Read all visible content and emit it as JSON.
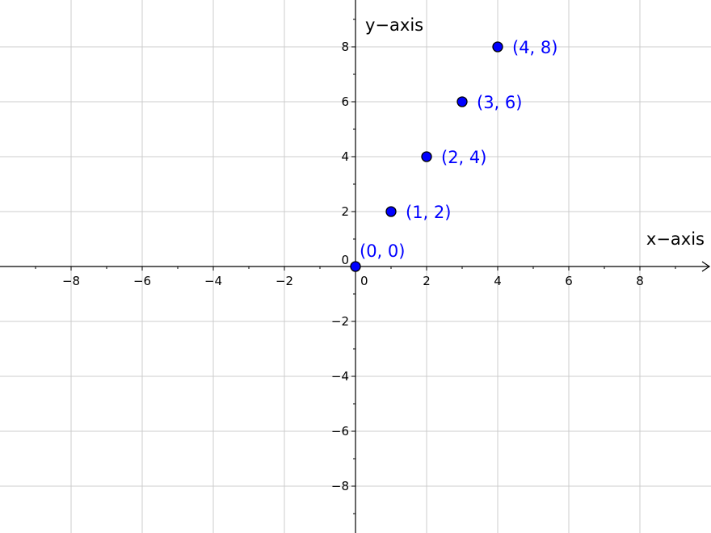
{
  "chart_data": {
    "type": "scatter",
    "xlabel": "x−axis",
    "ylabel": "y−axis",
    "xlim": [
      -10,
      10
    ],
    "ylim": [
      -9.7,
      9.7
    ],
    "grid": true,
    "x_ticks": [
      -8,
      -6,
      -4,
      -2,
      0,
      2,
      4,
      6,
      8
    ],
    "y_ticks": [
      -8,
      -6,
      -4,
      -2,
      0,
      2,
      4,
      6,
      8
    ],
    "x_tick_labels": [
      "−8",
      "−6",
      "−4",
      "−2",
      "0",
      "2",
      "4",
      "6",
      "8"
    ],
    "y_tick_labels": [
      "−8",
      "−6",
      "−4",
      "−2",
      "0",
      "2",
      "4",
      "6",
      "8"
    ],
    "points_color": "#0000ff",
    "label_color": "#0000ff",
    "points": [
      {
        "x": 0,
        "y": 0,
        "label": "(0, 0)"
      },
      {
        "x": 1,
        "y": 2,
        "label": "(1, 2)"
      },
      {
        "x": 2,
        "y": 4,
        "label": "(2, 4)"
      },
      {
        "x": 3,
        "y": 6,
        "label": "(3, 6)"
      },
      {
        "x": 4,
        "y": 8,
        "label": "(4, 8)"
      }
    ]
  }
}
